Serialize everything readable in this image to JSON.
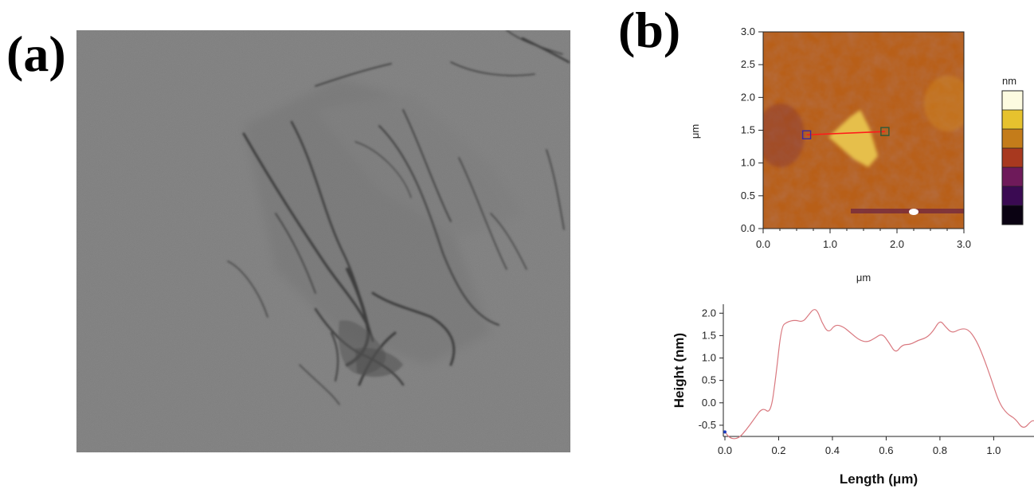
{
  "panels": {
    "a": {
      "label": "(a)"
    },
    "b": {
      "label": "(b)"
    }
  },
  "chart_data": [
    {
      "type": "heatmap",
      "xlabel": "μm",
      "ylabel": "μm",
      "xlim": [
        0.0,
        3.0
      ],
      "ylim": [
        0.0,
        3.0
      ],
      "x_ticks": [
        "0.0",
        "1.0",
        "2.0",
        "3.0"
      ],
      "y_ticks": [
        "0.0",
        "0.5",
        "1.0",
        "1.5",
        "2.0",
        "2.5",
        "3.0"
      ],
      "colorbar": {
        "unit": "nm",
        "colors": [
          "#fdfbe0",
          "#e6c22e",
          "#c47c1a",
          "#a8391f",
          "#6e1a5a",
          "#3a0a52",
          "#0a0212"
        ]
      },
      "line_cut": {
        "start": [
          0.65,
          1.43
        ],
        "end": [
          1.82,
          1.48
        ],
        "color": "#ff1a1a"
      }
    },
    {
      "type": "line",
      "xlabel": "Length (μm)",
      "ylabel": "Height (nm)",
      "xlim": [
        0.0,
        1.15
      ],
      "ylim": [
        -0.75,
        2.2
      ],
      "x_ticks": [
        "0.0",
        "0.2",
        "0.4",
        "0.6",
        "0.8",
        "1.0"
      ],
      "y_ticks": [
        "-0.5",
        "0.0",
        "0.5",
        "1.0",
        "1.5",
        "2.0"
      ],
      "line_color": "#d9787f",
      "series": [
        {
          "x": [
            0.0,
            0.02,
            0.05,
            0.08,
            0.11,
            0.14,
            0.17,
            0.19,
            0.21,
            0.23,
            0.26,
            0.29,
            0.31,
            0.33,
            0.345,
            0.36,
            0.385,
            0.41,
            0.44,
            0.47,
            0.5,
            0.53,
            0.56,
            0.585,
            0.61,
            0.635,
            0.66,
            0.69,
            0.72,
            0.75,
            0.775,
            0.8,
            0.82,
            0.845,
            0.875,
            0.905,
            0.935,
            0.96,
            0.99,
            1.02,
            1.05,
            1.08,
            1.11,
            1.14,
            1.15
          ],
          "y": [
            -0.65,
            -0.8,
            -0.8,
            -0.6,
            -0.35,
            -0.1,
            -0.25,
            0.6,
            1.7,
            1.8,
            1.85,
            1.8,
            1.95,
            2.1,
            2.05,
            1.8,
            1.55,
            1.75,
            1.7,
            1.55,
            1.4,
            1.35,
            1.45,
            1.55,
            1.35,
            1.1,
            1.3,
            1.3,
            1.4,
            1.45,
            1.6,
            1.85,
            1.7,
            1.55,
            1.65,
            1.65,
            1.4,
            1.05,
            0.55,
            0.0,
            -0.25,
            -0.35,
            -0.6,
            -0.4,
            -0.4
          ]
        }
      ]
    }
  ]
}
